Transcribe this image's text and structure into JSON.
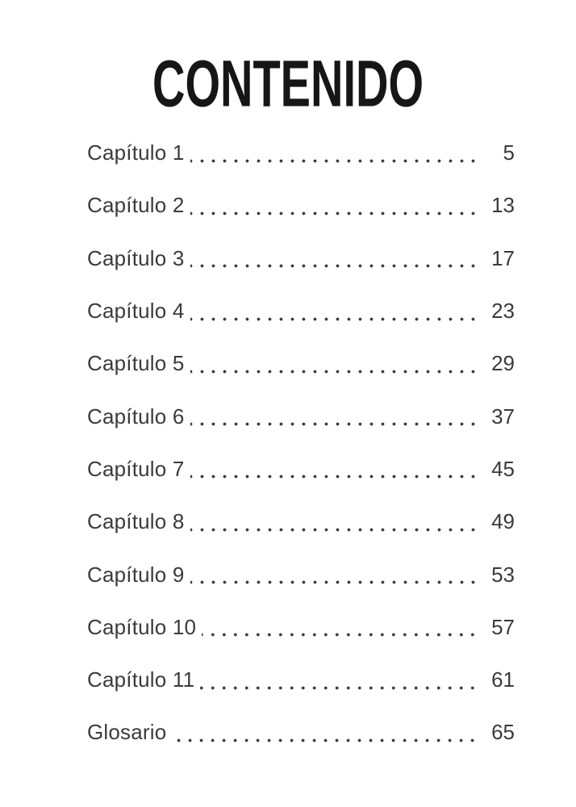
{
  "page": {
    "title": "CONTENIDO",
    "colors": {
      "background": "#ffffff",
      "text": "#3b3b3b",
      "title": "#161616"
    },
    "toc": {
      "entries": [
        {
          "label": "Capítulo 1",
          "page": "5"
        },
        {
          "label": "Capítulo 2",
          "page": "13"
        },
        {
          "label": "Capítulo 3",
          "page": "17"
        },
        {
          "label": "Capítulo 4",
          "page": "23"
        },
        {
          "label": "Capítulo 5",
          "page": "29"
        },
        {
          "label": "Capítulo 6",
          "page": "37"
        },
        {
          "label": "Capítulo 7",
          "page": "45"
        },
        {
          "label": "Capítulo 8",
          "page": "49"
        },
        {
          "label": "Capítulo 9",
          "page": "53"
        },
        {
          "label": "Capítulo 10",
          "page": "57"
        },
        {
          "label": "Capítulo 11",
          "page": "61"
        },
        {
          "label": "Glosario",
          "page": "65"
        }
      ]
    }
  }
}
